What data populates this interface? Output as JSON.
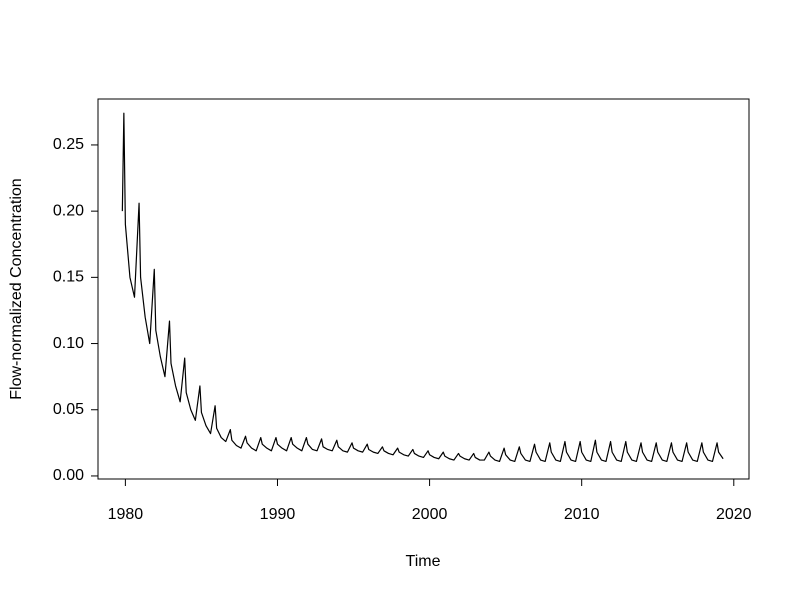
{
  "chart_data": {
    "type": "line",
    "xlabel": "Time",
    "ylabel": "Flow-normalized Concentration",
    "xlim": [
      1978.2,
      2021.0
    ],
    "ylim": [
      -0.0023,
      0.2847
    ],
    "xticks": [
      1980,
      1990,
      2000,
      2010,
      2020
    ],
    "yticks": [
      {
        "value": 0,
        "label": "0.00"
      },
      {
        "value": 0.05,
        "label": "0.05"
      },
      {
        "value": 0.1,
        "label": "0.10"
      },
      {
        "value": 0.15,
        "label": "0.15"
      },
      {
        "value": 0.2,
        "label": "0.20"
      },
      {
        "value": 0.25,
        "label": "0.25"
      }
    ],
    "series": [
      {
        "color": "#000000",
        "x": [
          1979.8,
          1979.9,
          1980.0,
          1980.3,
          1980.6,
          1980.9,
          1981.0,
          1981.3,
          1981.6,
          1981.9,
          1982.0,
          1982.3,
          1982.6,
          1982.9,
          1983.0,
          1983.3,
          1983.6,
          1983.9,
          1984.0,
          1984.3,
          1984.6,
          1984.9,
          1985.0,
          1985.3,
          1985.6,
          1985.9,
          1986.0,
          1986.3,
          1986.6,
          1986.9,
          1987.0,
          1987.3,
          1987.6,
          1987.9,
          1988.0,
          1988.3,
          1988.6,
          1988.9,
          1989.0,
          1989.3,
          1989.6,
          1989.9,
          1990.0,
          1990.3,
          1990.6,
          1990.9,
          1991.0,
          1991.3,
          1991.6,
          1991.9,
          1992.0,
          1992.3,
          1992.6,
          1992.9,
          1993.0,
          1993.3,
          1993.6,
          1993.9,
          1994.0,
          1994.3,
          1994.6,
          1994.9,
          1995.0,
          1995.3,
          1995.6,
          1995.9,
          1996.0,
          1996.3,
          1996.6,
          1996.9,
          1997.0,
          1997.3,
          1997.6,
          1997.9,
          1998.0,
          1998.3,
          1998.6,
          1998.9,
          1999.0,
          1999.3,
          1999.6,
          1999.9,
          2000.0,
          2000.3,
          2000.6,
          2000.9,
          2001.0,
          2001.3,
          2001.6,
          2001.9,
          2002.0,
          2002.3,
          2002.6,
          2002.9,
          2003.0,
          2003.3,
          2003.6,
          2003.9,
          2004.0,
          2004.3,
          2004.6,
          2004.9,
          2005.0,
          2005.3,
          2005.6,
          2005.9,
          2006.0,
          2006.3,
          2006.6,
          2006.9,
          2007.0,
          2007.3,
          2007.6,
          2007.9,
          2008.0,
          2008.3,
          2008.6,
          2008.9,
          2009.0,
          2009.3,
          2009.6,
          2009.9,
          2010.0,
          2010.3,
          2010.6,
          2010.9,
          2011.0,
          2011.3,
          2011.6,
          2011.9,
          2012.0,
          2012.3,
          2012.6,
          2012.9,
          2013.0,
          2013.3,
          2013.6,
          2013.9,
          2014.0,
          2014.3,
          2014.6,
          2014.9,
          2015.0,
          2015.3,
          2015.6,
          2015.9,
          2016.0,
          2016.3,
          2016.6,
          2016.9,
          2017.0,
          2017.3,
          2017.6,
          2017.9,
          2018.0,
          2018.3,
          2018.6,
          2018.9,
          2019.0,
          2019.3
        ],
        "values": [
          0.2,
          0.274,
          0.19,
          0.15,
          0.135,
          0.206,
          0.15,
          0.12,
          0.1,
          0.156,
          0.11,
          0.09,
          0.075,
          0.117,
          0.085,
          0.068,
          0.056,
          0.089,
          0.063,
          0.05,
          0.042,
          0.068,
          0.048,
          0.038,
          0.032,
          0.053,
          0.036,
          0.029,
          0.026,
          0.035,
          0.027,
          0.023,
          0.021,
          0.03,
          0.025,
          0.021,
          0.019,
          0.029,
          0.024,
          0.021,
          0.019,
          0.029,
          0.024,
          0.021,
          0.019,
          0.029,
          0.024,
          0.021,
          0.019,
          0.029,
          0.024,
          0.02,
          0.019,
          0.028,
          0.022,
          0.02,
          0.019,
          0.027,
          0.022,
          0.019,
          0.018,
          0.025,
          0.021,
          0.019,
          0.018,
          0.024,
          0.02,
          0.018,
          0.017,
          0.022,
          0.019,
          0.017,
          0.016,
          0.021,
          0.018,
          0.016,
          0.015,
          0.02,
          0.017,
          0.015,
          0.014,
          0.019,
          0.016,
          0.014,
          0.013,
          0.018,
          0.015,
          0.013,
          0.012,
          0.017,
          0.015,
          0.013,
          0.012,
          0.017,
          0.014,
          0.012,
          0.012,
          0.018,
          0.015,
          0.012,
          0.011,
          0.021,
          0.016,
          0.012,
          0.011,
          0.022,
          0.017,
          0.012,
          0.011,
          0.024,
          0.018,
          0.012,
          0.011,
          0.025,
          0.018,
          0.012,
          0.011,
          0.026,
          0.018,
          0.012,
          0.011,
          0.026,
          0.018,
          0.012,
          0.011,
          0.027,
          0.018,
          0.012,
          0.011,
          0.026,
          0.018,
          0.012,
          0.011,
          0.026,
          0.018,
          0.012,
          0.011,
          0.025,
          0.018,
          0.012,
          0.011,
          0.025,
          0.018,
          0.012,
          0.011,
          0.025,
          0.018,
          0.012,
          0.011,
          0.025,
          0.018,
          0.012,
          0.011,
          0.025,
          0.018,
          0.012,
          0.011,
          0.025,
          0.018,
          0.013
        ]
      }
    ]
  }
}
